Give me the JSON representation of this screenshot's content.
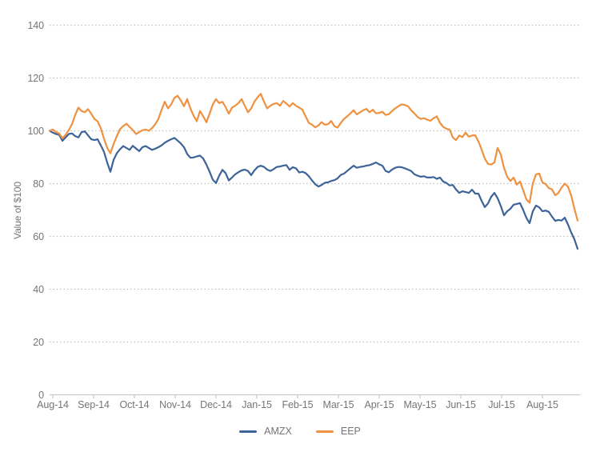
{
  "chart": {
    "y_axis_title": "Value of $100",
    "axis_color": "#c9c9c9",
    "grid_color": "#b5b5b5",
    "label_color": "#757575",
    "background": "#ffffff"
  },
  "chart_data": {
    "type": "line",
    "title": "",
    "xlabel": "",
    "ylabel": "Value of $100",
    "ylim": [
      0,
      140
    ],
    "yticks": [
      0,
      20,
      40,
      60,
      80,
      100,
      120,
      140
    ],
    "x_tick_labels": [
      "Aug-14",
      "Sep-14",
      "Oct-14",
      "Nov-14",
      "Dec-14",
      "Jan-15",
      "Feb-15",
      "Mar-15",
      "Apr-15",
      "May-15",
      "Jun-15",
      "Jul-15",
      "Aug-15"
    ],
    "x_description": "Indexed value of $100, sampled at equal intervals from Aug 2014 through late Aug 2015",
    "grid": "dotted horizontal gridlines",
    "legend_position": "bottom center",
    "series": [
      {
        "name": "AMZX",
        "color": "#3d6498",
        "values": [
          100,
          99.3,
          98.8,
          98.5,
          96.2,
          97.5,
          98.8,
          99,
          98,
          97.5,
          99.5,
          99.8,
          98.3,
          96.8,
          96.5,
          96.8,
          94.5,
          92,
          88,
          84.5,
          89,
          91.5,
          93,
          94.2,
          93.5,
          92.8,
          94.3,
          93.3,
          92.3,
          93.8,
          94.2,
          93.5,
          92.8,
          93.2,
          93.8,
          94.5,
          95.5,
          96.2,
          96.8,
          97.3,
          96.3,
          95.2,
          93.8,
          91.2,
          89.8,
          89.9,
          90.3,
          90.6,
          89.5,
          87.2,
          84.5,
          81.5,
          80.2,
          83,
          85.2,
          84,
          81.2,
          82.3,
          83.5,
          84.3,
          85,
          85.3,
          84.8,
          83.2,
          85,
          86.3,
          86.8,
          86.3,
          85.3,
          84.8,
          85.5,
          86.3,
          86.5,
          86.8,
          87,
          85.2,
          86.2,
          85.8,
          84.2,
          84.5,
          84,
          82.8,
          81.2,
          79.8,
          78.9,
          79.5,
          80.3,
          80.5,
          81,
          81.3,
          82,
          83.3,
          83.8,
          84.8,
          85.8,
          86.8,
          86,
          86.3,
          86.5,
          86.8,
          87,
          87.5,
          88,
          87.3,
          86.8,
          84.8,
          84.3,
          85.3,
          86,
          86.3,
          86.2,
          85.8,
          85.3,
          84.8,
          83.5,
          83,
          82.6,
          82.8,
          82.3,
          82.3,
          82.5,
          81.8,
          82.3,
          80.8,
          80.2,
          79.3,
          79.5,
          77.8,
          76.5,
          77.1,
          76.8,
          76.5,
          77.7,
          76.2,
          76.2,
          73.5,
          71.1,
          72.5,
          75,
          76.5,
          74.5,
          71.5,
          68,
          69.5,
          70.5,
          72,
          72.3,
          72.6,
          70,
          67,
          65,
          69.5,
          71.7,
          71,
          69.5,
          69.8,
          69.3,
          67.5,
          65.9,
          66.2,
          66,
          67.1,
          64.5,
          61.5,
          58.9,
          55.3
        ]
      },
      {
        "name": "EEP",
        "color": "#ee9140",
        "values": [
          100,
          100.5,
          99.5,
          99,
          97.2,
          98.5,
          100.3,
          102.5,
          106,
          108.8,
          107.5,
          107,
          108.2,
          106.5,
          104.5,
          103.6,
          101,
          97,
          93.5,
          91.5,
          95,
          98,
          100.6,
          101.8,
          102.7,
          101.5,
          100.3,
          98.8,
          99.5,
          100.2,
          100.5,
          100,
          101,
          102.5,
          104.5,
          108,
          111,
          108.5,
          110,
          112.5,
          113.3,
          111.5,
          109.3,
          112,
          108.5,
          105.7,
          103.6,
          107.5,
          105.5,
          103.2,
          106.5,
          110,
          112,
          110.5,
          111,
          109,
          106.5,
          108.8,
          109.5,
          110.5,
          112,
          109.5,
          107,
          108.5,
          111,
          112.7,
          114,
          111,
          108.5,
          109.5,
          110.2,
          110.5,
          109.5,
          111.3,
          110.3,
          109.2,
          110.5,
          109.5,
          108.8,
          108,
          105.5,
          103,
          102.3,
          101.3,
          102,
          103.3,
          102.3,
          102.5,
          103.7,
          101.8,
          101.2,
          103,
          104.5,
          105.5,
          106.6,
          107.8,
          106.2,
          107,
          107.8,
          108.3,
          107,
          108,
          106.6,
          106.8,
          107.2,
          106,
          106.3,
          107.5,
          108.5,
          109.3,
          110,
          109.8,
          109.3,
          107.8,
          106.6,
          105.2,
          104.5,
          104.8,
          104.2,
          103.8,
          104.8,
          105.5,
          103,
          101.5,
          100.8,
          100.5,
          97.5,
          96.5,
          98.2,
          97.6,
          99.3,
          97.8,
          98.2,
          98.3,
          96,
          92.9,
          89.5,
          87.5,
          87.2,
          88,
          93.5,
          91,
          86,
          82.6,
          81,
          82.3,
          79.6,
          80.8,
          77.5,
          74,
          72.8,
          80,
          83.5,
          83.8,
          80.5,
          79.8,
          78.3,
          77.8,
          75.6,
          76.5,
          78.5,
          80,
          78.8,
          75.5,
          70.5,
          66
        ]
      }
    ]
  }
}
